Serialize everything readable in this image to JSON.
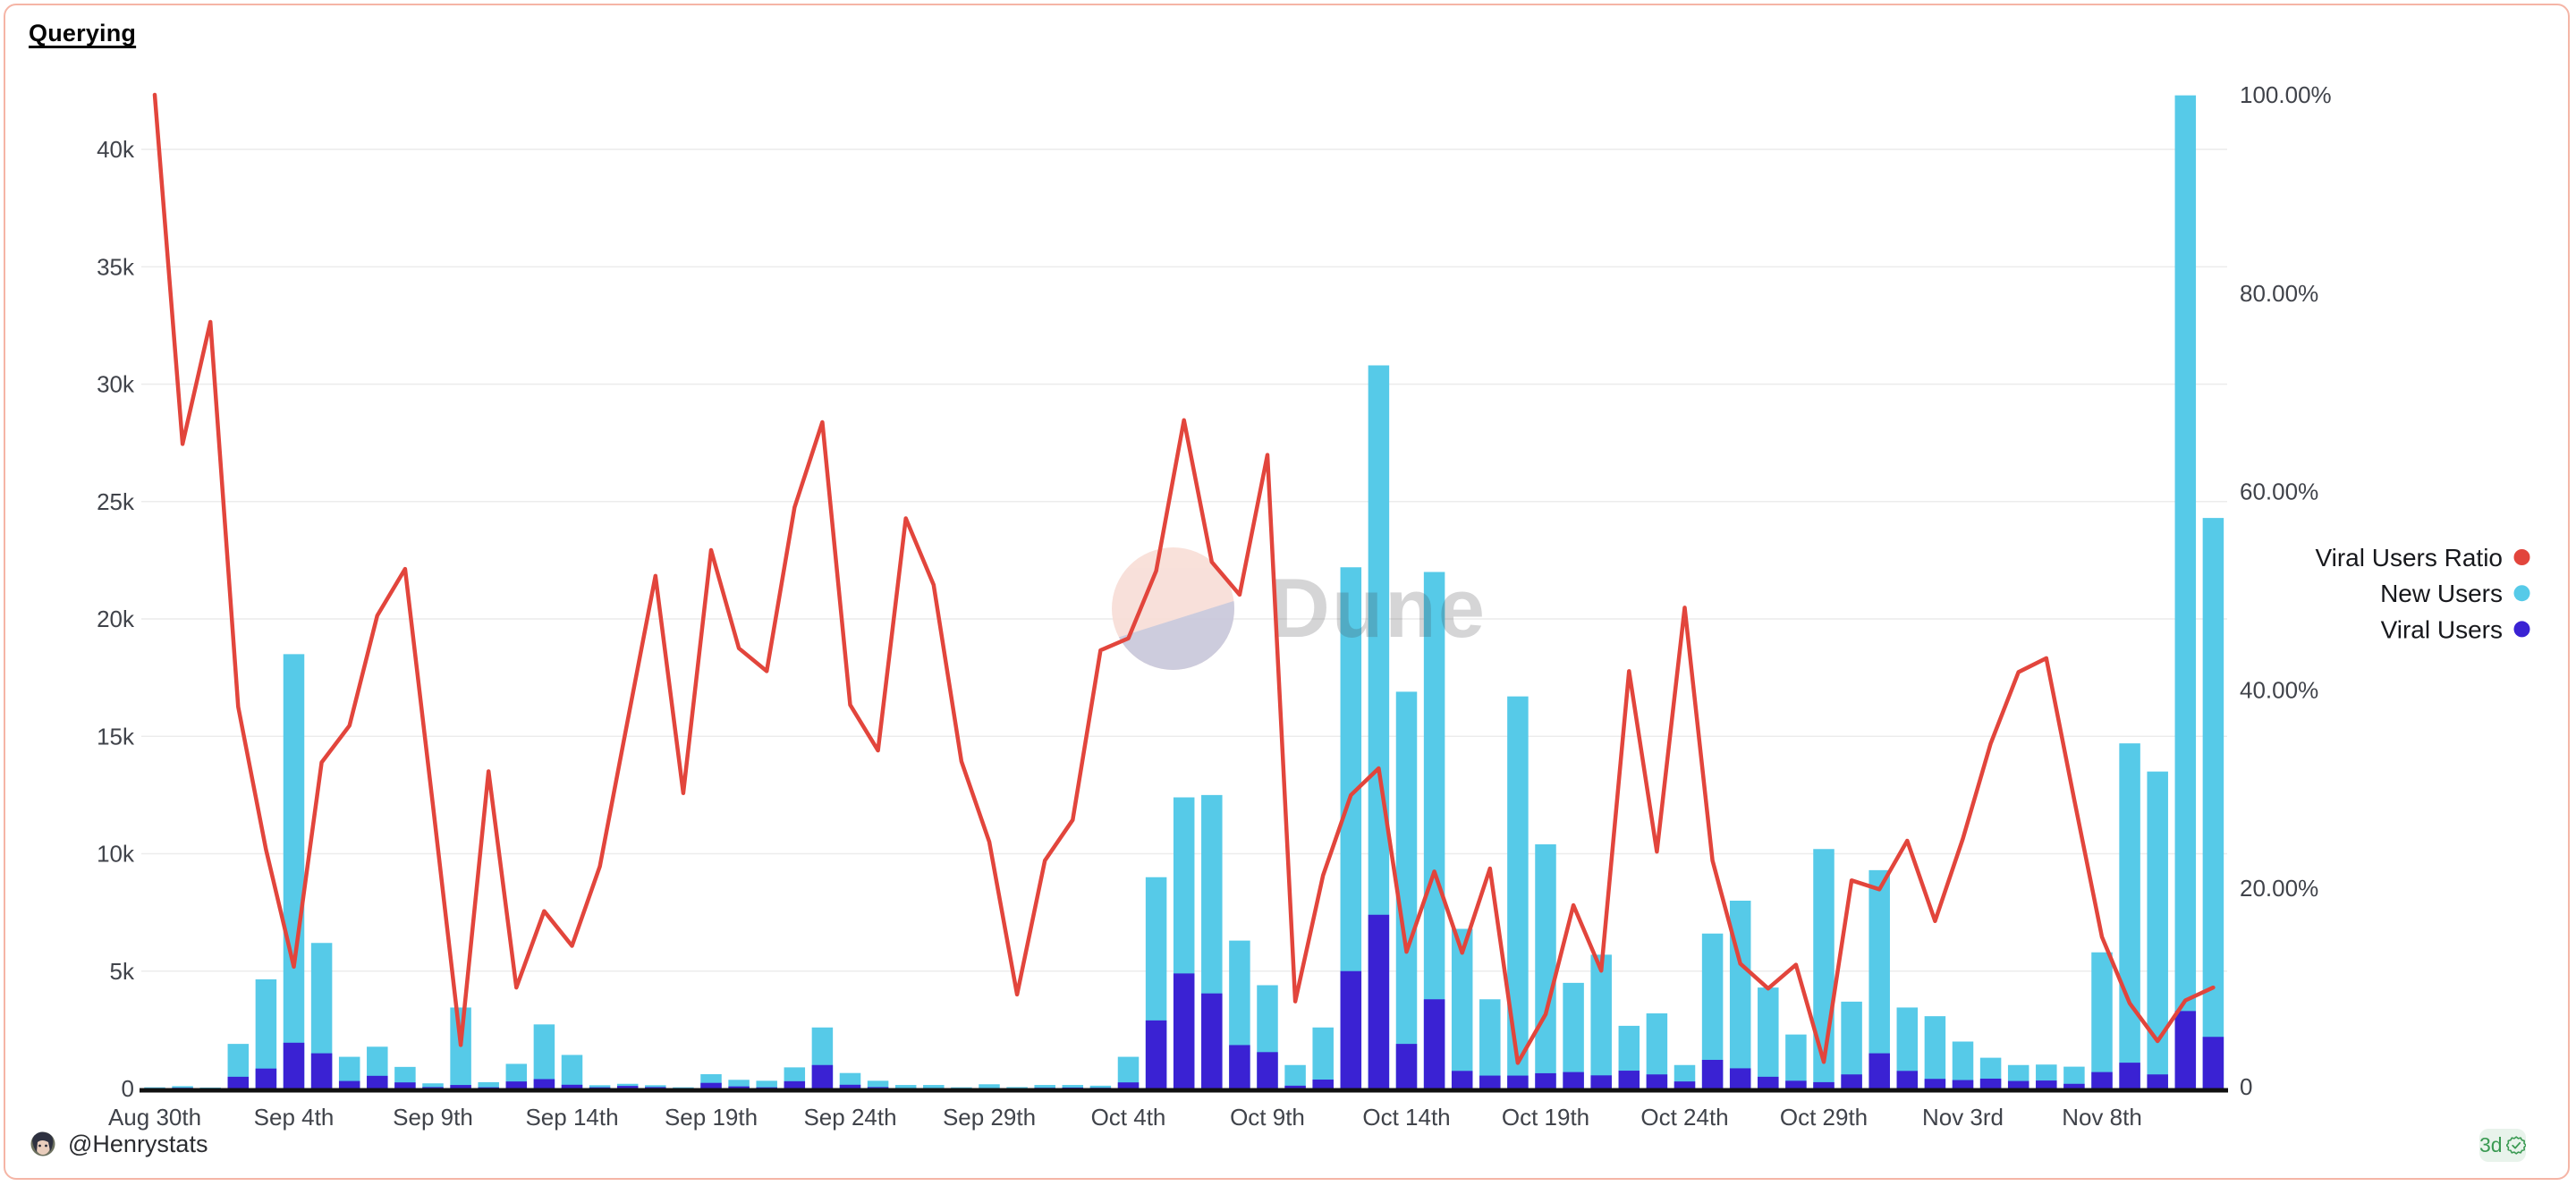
{
  "chart": {
    "title": "Querying"
  },
  "watermark": {
    "text": "Dune"
  },
  "legend": [
    {
      "label": "Viral Users Ratio",
      "color": "#e2453c"
    },
    {
      "label": "New Users",
      "color": "#56cae8"
    },
    {
      "label": "Viral Users",
      "color": "#3a22d3"
    }
  ],
  "footer": {
    "handle": "@Henrystats",
    "badge_label": "3d",
    "badge_icon": "verified-check",
    "avatar_icon": "user-avatar"
  },
  "colors": {
    "new_users_bar": "#56cae8",
    "viral_users_bar": "#3a22d3",
    "ratio_line": "#e2453c",
    "card_border": "#f5b5a6",
    "gridline": "#ececec",
    "axis_line": "#111111",
    "tick_text": "#40434a",
    "badge_green": "#3a9a52",
    "badge_bg": "#e8f3eb"
  },
  "axes": {
    "left_ticks": [
      {
        "label": "0",
        "value": 0
      },
      {
        "label": "5k",
        "value": 5000
      },
      {
        "label": "10k",
        "value": 10000
      },
      {
        "label": "15k",
        "value": 15000
      },
      {
        "label": "20k",
        "value": 20000
      },
      {
        "label": "25k",
        "value": 25000
      },
      {
        "label": "30k",
        "value": 30000
      },
      {
        "label": "35k",
        "value": 35000
      },
      {
        "label": "40k",
        "value": 40000
      }
    ],
    "right_ticks": [
      {
        "label": "0",
        "value": 0
      },
      {
        "label": "20.00%",
        "value": 20
      },
      {
        "label": "40.00%",
        "value": 40
      },
      {
        "label": "60.00%",
        "value": 60
      },
      {
        "label": "80.00%",
        "value": 80
      },
      {
        "label": "100.00%",
        "value": 100
      }
    ],
    "x_tick_labels": [
      "Aug 30th",
      "Sep 4th",
      "Sep 9th",
      "Sep 14th",
      "Sep 19th",
      "Sep 24th",
      "Sep 29th",
      "Oct 4th",
      "Oct 9th",
      "Oct 14th",
      "Oct 19th",
      "Oct 24th",
      "Oct 29th",
      "Nov 3rd",
      "Nov 8th"
    ],
    "x_tick_every": 5
  },
  "chart_data": {
    "type": "bar+line",
    "x": [
      "Aug 30",
      "Aug 31",
      "Sep 1",
      "Sep 2",
      "Sep 3",
      "Sep 4",
      "Sep 5",
      "Sep 6",
      "Sep 7",
      "Sep 8",
      "Sep 9",
      "Sep 10",
      "Sep 11",
      "Sep 12",
      "Sep 13",
      "Sep 14",
      "Sep 15",
      "Sep 16",
      "Sep 17",
      "Sep 18",
      "Sep 19",
      "Sep 20",
      "Sep 21",
      "Sep 22",
      "Sep 23",
      "Sep 24",
      "Sep 25",
      "Sep 26",
      "Sep 27",
      "Sep 28",
      "Sep 29",
      "Sep 30",
      "Oct 1",
      "Oct 2",
      "Oct 3",
      "Oct 4",
      "Oct 5",
      "Oct 6",
      "Oct 7",
      "Oct 8",
      "Oct 9",
      "Oct 10",
      "Oct 11",
      "Oct 12",
      "Oct 13",
      "Oct 14",
      "Oct 15",
      "Oct 16",
      "Oct 17",
      "Oct 18",
      "Oct 19",
      "Oct 20",
      "Oct 21",
      "Oct 22",
      "Oct 23",
      "Oct 24",
      "Oct 25",
      "Oct 26",
      "Oct 27",
      "Oct 28",
      "Oct 29",
      "Oct 30",
      "Oct 31",
      "Nov 1",
      "Nov 2",
      "Nov 3",
      "Nov 4",
      "Nov 5",
      "Nov 6",
      "Nov 7",
      "Nov 8",
      "Nov 9",
      "Nov 10",
      "Nov 11",
      "Nov 12"
    ],
    "series": [
      {
        "name": "New Users",
        "type": "bar",
        "axis": "left",
        "color": "#56cae8",
        "values": [
          50,
          100,
          40,
          1900,
          4650,
          18500,
          6200,
          1350,
          1780,
          920,
          220,
          3450,
          270,
          1050,
          2730,
          1430,
          140,
          200,
          140,
          50,
          610,
          370,
          330,
          900,
          2600,
          660,
          330,
          150,
          150,
          50,
          180,
          60,
          150,
          150,
          120,
          1350,
          9000,
          12400,
          12500,
          6300,
          4400,
          1000,
          2600,
          22200,
          30800,
          16900,
          22000,
          6800,
          3800,
          16700,
          10400,
          4500,
          5700,
          2670,
          3200,
          1000,
          6600,
          8000,
          4300,
          2300,
          10200,
          3700,
          9300,
          3450,
          3080,
          2000,
          1310,
          1000,
          1020,
          930,
          5800,
          14700,
          13500,
          42300,
          24300
        ]
      },
      {
        "name": "Viral Users",
        "type": "bar",
        "axis": "left",
        "color": "#3a22d3",
        "values": [
          20,
          30,
          10,
          500,
          850,
          1950,
          1500,
          320,
          540,
          260,
          60,
          150,
          50,
          300,
          400,
          160,
          50,
          110,
          60,
          20,
          240,
          90,
          50,
          310,
          1000,
          160,
          60,
          20,
          20,
          10,
          20,
          10,
          30,
          40,
          30,
          260,
          2900,
          4900,
          4050,
          1850,
          1550,
          120,
          380,
          5000,
          7400,
          1900,
          3800,
          750,
          550,
          550,
          650,
          700,
          560,
          760,
          600,
          300,
          1220,
          860,
          500,
          330,
          270,
          600,
          1500,
          750,
          410,
          360,
          420,
          320,
          340,
          200,
          700,
          1100,
          600,
          3300,
          2200
        ]
      },
      {
        "name": "Viral Users Ratio",
        "type": "line",
        "axis": "right",
        "color": "#e2453c",
        "unit": "%",
        "values": [
          100,
          64.8,
          77.1,
          38.3,
          23.9,
          12.1,
          32.7,
          36.4,
          47.5,
          52.2,
          28.4,
          4.2,
          31.8,
          10.0,
          17.7,
          14.2,
          22.2,
          36.9,
          51.5,
          29.6,
          54.1,
          44.2,
          41.9,
          58.4,
          67.0,
          38.5,
          33.9,
          57.3,
          50.6,
          32.8,
          24.7,
          9.3,
          22.8,
          26.9,
          44.0,
          45.2,
          52.0,
          67.2,
          52.9,
          49.6,
          63.7,
          8.6,
          21.3,
          29.4,
          32.1,
          13.6,
          21.7,
          13.5,
          22.0,
          2.4,
          7.3,
          18.3,
          11.7,
          41.9,
          23.7,
          48.3,
          22.8,
          12.4,
          9.9,
          12.3,
          2.5,
          20.8,
          19.9,
          24.8,
          16.7,
          25.0,
          34.6,
          41.8,
          43.2,
          29.0,
          15.1,
          8.4,
          4.6,
          8.7,
          10.0
        ]
      }
    ],
    "left_axis_range": [
      0,
      42700
    ],
    "right_axis_range": [
      0,
      100
    ],
    "grid": "horizontal",
    "legend_position": "right"
  }
}
